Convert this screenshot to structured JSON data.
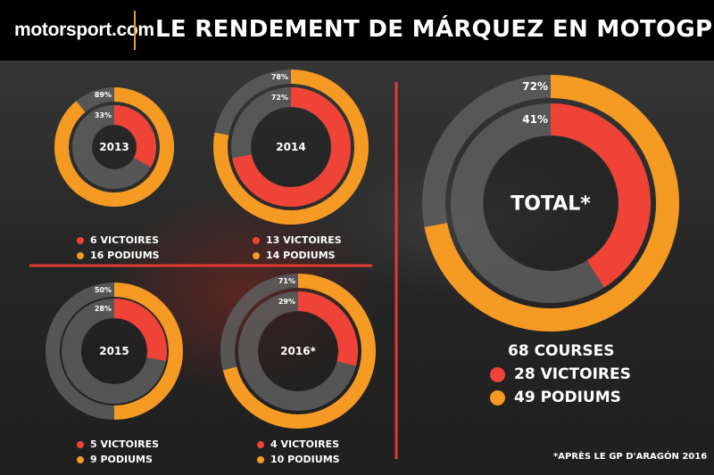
{
  "header": {
    "logo": "motorsport.com",
    "title": "LE RENDEMENT DE MÁRQUEZ EN MOTOGP"
  },
  "colors": {
    "podiums": "#f59a22",
    "victoires": "#ef4338",
    "track": "#5e5e5e",
    "divider": "#e03a33",
    "header_bg": "#000000"
  },
  "chart_data": [
    {
      "type": "donut",
      "title": "2013",
      "series": [
        {
          "name": "PODIUMS",
          "count": 16,
          "percent": 89,
          "label": "89%"
        },
        {
          "name": "VICTOIRES",
          "count": 6,
          "percent": 33,
          "label": "33%"
        }
      ],
      "legend": [
        "6 VICTOIRES",
        "16 PODIUMS"
      ]
    },
    {
      "type": "donut",
      "title": "2014",
      "series": [
        {
          "name": "PODIUMS",
          "count": 14,
          "percent": 78,
          "label": "78%"
        },
        {
          "name": "VICTOIRES",
          "count": 13,
          "percent": 72,
          "label": "72%"
        }
      ],
      "legend": [
        "13 VICTOIRES",
        "14 PODIUMS"
      ]
    },
    {
      "type": "donut",
      "title": "2015",
      "series": [
        {
          "name": "PODIUMS",
          "count": 9,
          "percent": 50,
          "label": "50%"
        },
        {
          "name": "VICTOIRES",
          "count": 5,
          "percent": 28,
          "label": "28%"
        }
      ],
      "legend": [
        "5 VICTOIRES",
        "9 PODIUMS"
      ]
    },
    {
      "type": "donut",
      "title": "2016*",
      "series": [
        {
          "name": "PODIUMS",
          "count": 10,
          "percent": 71,
          "label": "71%"
        },
        {
          "name": "VICTOIRES",
          "count": 4,
          "percent": 29,
          "label": "29%"
        }
      ],
      "legend": [
        "4 VICTOIRES",
        "10 PODIUMS"
      ]
    },
    {
      "type": "donut",
      "title": "TOTAL*",
      "series": [
        {
          "name": "PODIUMS",
          "count": 49,
          "percent": 72,
          "label": "72%"
        },
        {
          "name": "VICTOIRES",
          "count": 28,
          "percent": 41,
          "label": "41%"
        }
      ],
      "legend": [
        "68 COURSES",
        "28 VICTOIRES",
        "49 PODIUMS"
      ]
    }
  ],
  "footnote": "*APRÈS LE GP D'ARAGÓN 2016"
}
